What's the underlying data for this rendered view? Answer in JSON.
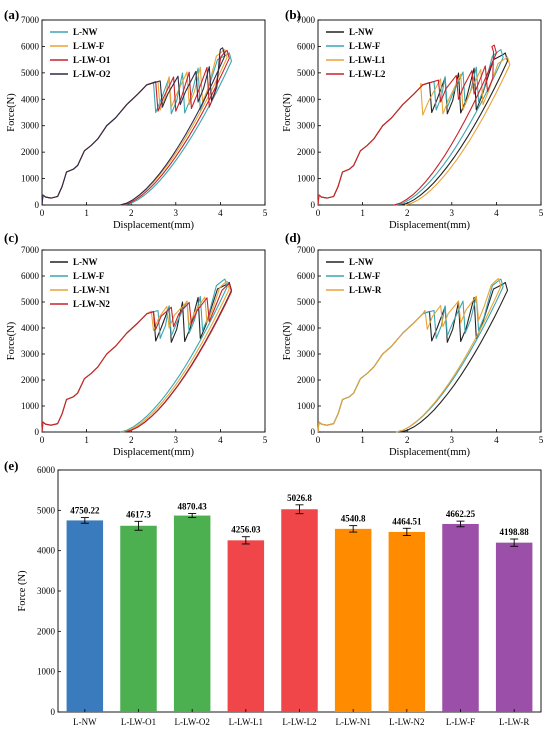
{
  "chart_data": [
    {
      "panel": "(a)",
      "type": "line",
      "xlabel": "Displacement(mm)",
      "ylabel": "Force(N)",
      "xlim": [
        0,
        5
      ],
      "ylim": [
        0,
        7000
      ],
      "xticks": [
        0,
        1,
        2,
        3,
        4,
        5
      ],
      "yticks": [
        0,
        1000,
        2000,
        3000,
        4000,
        5000,
        6000,
        7000
      ],
      "legend": "top-left",
      "series": [
        {
          "name": "L-NW",
          "color": "#3aa6b0",
          "peak": 5750,
          "peak_x": 4.2,
          "unload_x0": 1.85,
          "drops": [
            [
              2.55,
              3500
            ],
            [
              2.9,
              3450
            ],
            [
              3.2,
              3480
            ],
            [
              3.55,
              3600
            ]
          ]
        },
        {
          "name": "L-LW-F",
          "color": "#e8a436",
          "peak": 5880,
          "peak_x": 4.1,
          "unload_x0": 1.75,
          "drops": [
            [
              2.65,
              3600
            ],
            [
              2.9,
              3700
            ],
            [
              3.3,
              3800
            ],
            [
              3.6,
              3900
            ]
          ]
        },
        {
          "name": "L-LW-O1",
          "color": "#c8202b",
          "peak": 5850,
          "peak_x": 4.15,
          "unload_x0": 1.8,
          "drops": [
            [
              2.6,
              3550
            ],
            [
              3.0,
              3550
            ],
            [
              3.35,
              3650
            ],
            [
              3.75,
              3700
            ]
          ]
        },
        {
          "name": "L-LW-O2",
          "color": "#2c2c4a",
          "peak": 5950,
          "peak_x": 4.05,
          "unload_x0": 1.75,
          "drops": [
            [
              2.7,
              3700
            ],
            [
              3.1,
              3800
            ],
            [
              3.5,
              3900
            ],
            [
              3.8,
              3950
            ]
          ]
        }
      ]
    },
    {
      "panel": "(b)",
      "type": "line",
      "xlabel": "Displacement(mm)",
      "ylabel": "Force(N)",
      "xlim": [
        0,
        5
      ],
      "ylim": [
        0,
        7000
      ],
      "xticks": [
        0,
        1,
        2,
        3,
        4,
        5
      ],
      "yticks": [
        0,
        1000,
        2000,
        3000,
        4000,
        5000,
        6000,
        7000
      ],
      "legend": "top-left",
      "series": [
        {
          "name": "L-NW",
          "color": "#222222",
          "peak": 5750,
          "peak_x": 4.2,
          "unload_x0": 1.85,
          "drops": [
            [
              2.55,
              3500
            ],
            [
              2.9,
              3450
            ],
            [
              3.2,
              3480
            ],
            [
              3.55,
              3600
            ]
          ]
        },
        {
          "name": "L-LW-F",
          "color": "#3aa6b0",
          "peak": 5880,
          "peak_x": 4.1,
          "unload_x0": 1.75,
          "drops": [
            [
              2.65,
              3600
            ],
            [
              2.9,
              3700
            ],
            [
              3.3,
              3800
            ],
            [
              3.6,
              3900
            ]
          ]
        },
        {
          "name": "L-LW-L1",
          "color": "#e8a436",
          "peak": 5600,
          "peak_x": 4.25,
          "unload_x0": 1.95,
          "drops": [
            [
              2.35,
              3400
            ],
            [
              2.8,
              3450
            ],
            [
              3.25,
              3600
            ],
            [
              3.7,
              3800
            ]
          ]
        },
        {
          "name": "L-LW-L2",
          "color": "#c8202b",
          "peak": 6050,
          "peak_x": 3.95,
          "unload_x0": 1.7,
          "drops": [
            [
              2.75,
              3900
            ],
            [
              3.15,
              4000
            ],
            [
              3.5,
              4200
            ],
            [
              3.8,
              4300
            ]
          ]
        }
      ]
    },
    {
      "panel": "(c)",
      "type": "line",
      "xlabel": "Displacement(mm)",
      "ylabel": "Force(N)",
      "xlim": [
        0,
        5
      ],
      "ylim": [
        0,
        7000
      ],
      "xticks": [
        0,
        1,
        2,
        3,
        4,
        5
      ],
      "yticks": [
        0,
        1000,
        2000,
        3000,
        4000,
        5000,
        6000,
        7000
      ],
      "legend": "top-left",
      "series": [
        {
          "name": "L-NW",
          "color": "#222222",
          "peak": 5750,
          "peak_x": 4.2,
          "unload_x0": 1.85,
          "drops": [
            [
              2.55,
              3500
            ],
            [
              2.9,
              3450
            ],
            [
              3.2,
              3480
            ],
            [
              3.55,
              3600
            ]
          ]
        },
        {
          "name": "L-LW-F",
          "color": "#3aa6b0",
          "peak": 5880,
          "peak_x": 4.1,
          "unload_x0": 1.75,
          "drops": [
            [
              2.65,
              3600
            ],
            [
              2.9,
              3700
            ],
            [
              3.3,
              3800
            ],
            [
              3.6,
              3900
            ]
          ]
        },
        {
          "name": "L-LW-N1",
          "color": "#e8a436",
          "peak": 5800,
          "peak_x": 4.15,
          "unload_x0": 1.8,
          "drops": [
            [
              2.5,
              3900
            ],
            [
              2.85,
              4000
            ],
            [
              3.3,
              4100
            ],
            [
              3.7,
              4200
            ]
          ]
        },
        {
          "name": "L-LW-N2",
          "color": "#c8202b",
          "peak": 5700,
          "peak_x": 4.2,
          "unload_x0": 1.85,
          "drops": [
            [
              2.55,
              3950
            ],
            [
              2.95,
              4050
            ],
            [
              3.35,
              4150
            ],
            [
              3.75,
              4250
            ]
          ]
        }
      ]
    },
    {
      "panel": "(d)",
      "type": "line",
      "xlabel": "Displacement(mm)",
      "ylabel": "Force(N)",
      "xlim": [
        0,
        5
      ],
      "ylim": [
        0,
        7000
      ],
      "xticks": [
        0,
        1,
        2,
        3,
        4,
        5
      ],
      "yticks": [
        0,
        1000,
        2000,
        3000,
        4000,
        5000,
        6000,
        7000
      ],
      "legend": "top-left",
      "series": [
        {
          "name": "L-NW",
          "color": "#222222",
          "peak": 5750,
          "peak_x": 4.2,
          "unload_x0": 1.85,
          "drops": [
            [
              2.55,
              3500
            ],
            [
              2.9,
              3450
            ],
            [
              3.2,
              3480
            ],
            [
              3.55,
              3600
            ]
          ]
        },
        {
          "name": "L-LW-F",
          "color": "#3aa6b0",
          "peak": 5880,
          "peak_x": 4.1,
          "unload_x0": 1.75,
          "drops": [
            [
              2.65,
              3600
            ],
            [
              2.9,
              3700
            ],
            [
              3.3,
              3800
            ],
            [
              3.6,
              3900
            ]
          ]
        },
        {
          "name": "L-LW-R",
          "color": "#e8a436",
          "peak": 5900,
          "peak_x": 4.05,
          "unload_x0": 1.75,
          "drops": [
            [
              2.45,
              3950
            ],
            [
              2.8,
              4050
            ],
            [
              3.2,
              4200
            ],
            [
              3.6,
              4300
            ]
          ]
        }
      ]
    },
    {
      "panel": "(e)",
      "type": "bar",
      "xlabel": "",
      "ylabel": "Force (N)",
      "ylim": [
        0,
        6000
      ],
      "yticks": [
        0,
        1000,
        2000,
        3000,
        4000,
        5000,
        6000
      ],
      "categories": [
        "L-NW",
        "L-LW-O1",
        "L-LW-O2",
        "L-LW-L1",
        "L-LW-L2",
        "L-LW-N1",
        "L-LW-N2",
        "L-LW-F",
        "L-LW-R"
      ],
      "values": [
        4750.22,
        4617.3,
        4870.43,
        4256.03,
        5026.8,
        4540.8,
        4464.51,
        4662.25,
        4198.88
      ],
      "value_labels": [
        "4750.22",
        "4617.3",
        "4870.43",
        "4256.03",
        "5026.8",
        "4540.8",
        "4464.51",
        "4662.25",
        "4198.88"
      ],
      "errors": [
        70,
        110,
        50,
        90,
        110,
        80,
        90,
        70,
        90
      ],
      "colors": [
        "#3a7bbd",
        "#4caf50",
        "#4caf50",
        "#f0464a",
        "#f0464a",
        "#ff8c00",
        "#ff8c00",
        "#9c4fa8",
        "#9c4fa8"
      ]
    }
  ]
}
